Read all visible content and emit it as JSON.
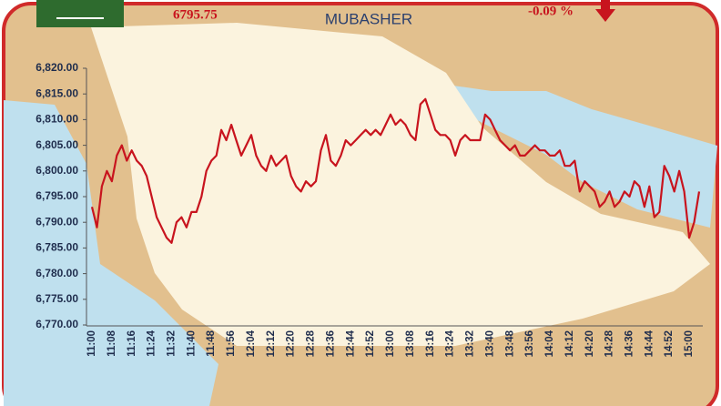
{
  "chart_data": {
    "type": "line",
    "price": "6795.75",
    "change": "-0.09 %",
    "brand": "MUBASHER",
    "color": "#c8141e",
    "ylim": [
      6770,
      6820
    ],
    "yticks": [
      {
        "value": 6770,
        "label": "6,770.00"
      },
      {
        "value": 6775,
        "label": "6,775.00"
      },
      {
        "value": 6780,
        "label": "6,780.00"
      },
      {
        "value": 6785,
        "label": "6,785.00"
      },
      {
        "value": 6790,
        "label": "6,790.00"
      },
      {
        "value": 6795,
        "label": "6,795.00"
      },
      {
        "value": 6800,
        "label": "6,800.00"
      },
      {
        "value": 6805,
        "label": "6,805.00"
      },
      {
        "value": 6810,
        "label": "6,810.00"
      },
      {
        "value": 6815,
        "label": "6,815.00"
      },
      {
        "value": 6820,
        "label": "6,820.00"
      }
    ],
    "categories": [
      "11:00",
      null,
      null,
      null,
      "11:08",
      null,
      null,
      null,
      "11:16",
      null,
      null,
      null,
      "11:24",
      null,
      null,
      null,
      "11:32",
      null,
      null,
      null,
      "11:40",
      null,
      null,
      null,
      "11:48",
      null,
      null,
      null,
      "11:56",
      null,
      null,
      null,
      "12:04",
      null,
      null,
      null,
      "12:12",
      null,
      null,
      null,
      "12:20",
      null,
      null,
      null,
      "12:28",
      null,
      null,
      null,
      "12:36",
      null,
      null,
      null,
      "12:44",
      null,
      null,
      null,
      "12:52",
      null,
      null,
      null,
      "13:00",
      null,
      null,
      null,
      "13:08",
      null,
      null,
      null,
      "13:16",
      null,
      null,
      null,
      "13:24",
      null,
      null,
      null,
      "13:32",
      null,
      null,
      null,
      "13:40",
      null,
      null,
      null,
      "13:48",
      null,
      null,
      null,
      "13:56",
      null,
      null,
      null,
      "14:04",
      null,
      null,
      null,
      "14:12",
      null,
      null,
      null,
      "14:20",
      null,
      null,
      null,
      "14:28",
      null,
      null,
      null,
      "14:36",
      null,
      null,
      null,
      "14:44",
      null,
      null,
      null,
      "14:52",
      null,
      null,
      null,
      "15:00",
      null,
      null
    ],
    "values": [
      6793,
      6789,
      6797,
      6800,
      6798,
      6803,
      6805,
      6802,
      6804,
      6802,
      6801,
      6799,
      6795,
      6791,
      6789,
      6787,
      6786,
      6790,
      6791,
      6789,
      6792,
      6792,
      6795,
      6800,
      6802,
      6803,
      6808,
      6806,
      6809,
      6806,
      6803,
      6805,
      6807,
      6803,
      6801,
      6800,
      6803,
      6801,
      6802,
      6803,
      6799,
      6797,
      6796,
      6798,
      6797,
      6798,
      6804,
      6807,
      6802,
      6801,
      6803,
      6806,
      6805,
      6806,
      6807,
      6808,
      6807,
      6808,
      6807,
      6809,
      6811,
      6809,
      6810,
      6809,
      6807,
      6806,
      6813,
      6814,
      6811,
      6808,
      6807,
      6807,
      6806,
      6803,
      6806,
      6807,
      6806,
      6806,
      6806,
      6811,
      6810,
      6808,
      6806,
      6805,
      6804,
      6805,
      6803,
      6803,
      6804,
      6805,
      6804,
      6804,
      6803,
      6803,
      6804,
      6801,
      6801,
      6802,
      6796,
      6798,
      6797,
      6796,
      6793,
      6794,
      6796,
      6793,
      6794,
      6796,
      6795,
      6798,
      6797,
      6793,
      6797,
      6791,
      6792,
      6801,
      6799,
      6796,
      6800,
      6796,
      6787,
      6790,
      6796
    ]
  }
}
